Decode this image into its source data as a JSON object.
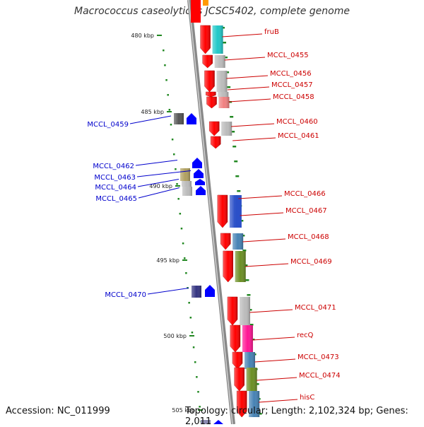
{
  "title": "Macrococcus caseolyticus JCSC5402, complete genome",
  "footer": {
    "accession": "Accession: NC_011999",
    "topology": "Topology: circular; Length: 2,102,324 bp; Genes: 2,011"
  },
  "colors": {
    "backbone": "#888888",
    "forward_gene": "#ff0000",
    "reverse_gene": "#0000ff",
    "forward_label": "#cc0000",
    "reverse_label": "#0000cc",
    "tick": "#228822"
  },
  "scale_ticks": [
    "480 kbp",
    "485 kbp",
    "490 kbp",
    "495 kbp",
    "500 kbp",
    "505 kbp"
  ],
  "forward_genes": [
    {
      "label": "fruB",
      "color": "#20c8c8"
    },
    {
      "label": "MCCL_0455",
      "color": "#bbbbbb"
    },
    {
      "label": "MCCL_0456",
      "color": "#bbbbbb"
    },
    {
      "label": "MCCL_0457",
      "color": "#bbbbbb"
    },
    {
      "label": "MCCL_0458",
      "color": "#f08080"
    },
    {
      "label": "MCCL_0460",
      "color": "#bbbbbb"
    },
    {
      "label": "MCCL_0461",
      "color": ""
    },
    {
      "label": "MCCL_0466",
      "color": "#2b50c8"
    },
    {
      "label": "MCCL_0467",
      "color": "#2b50c8"
    },
    {
      "label": "MCCL_0468",
      "color": "#4682b4"
    },
    {
      "label": "MCCL_0469",
      "color": "#6b8e23"
    },
    {
      "label": "MCCL_0471",
      "color": "#bbbbbb"
    },
    {
      "label": "recQ",
      "color": "#ff1493"
    },
    {
      "label": "MCCL_0473",
      "color": "#4682b4"
    },
    {
      "label": "MCCL_0474",
      "color": "#6b8e23"
    },
    {
      "label": "hisC",
      "color": "#4682b4"
    }
  ],
  "reverse_genes": [
    {
      "label": "MCCL_0459",
      "color": "#555555"
    },
    {
      "label": "MCCL_0462",
      "color": "#b0a060"
    },
    {
      "label": "MCCL_0463",
      "color": "#0000ff"
    },
    {
      "label": "MCCL_0464",
      "color": "#bbbbbb"
    },
    {
      "label": "MCCL_0465",
      "color": "#bbbbbb"
    },
    {
      "label": "MCCL_0470",
      "color": "#333380"
    }
  ]
}
